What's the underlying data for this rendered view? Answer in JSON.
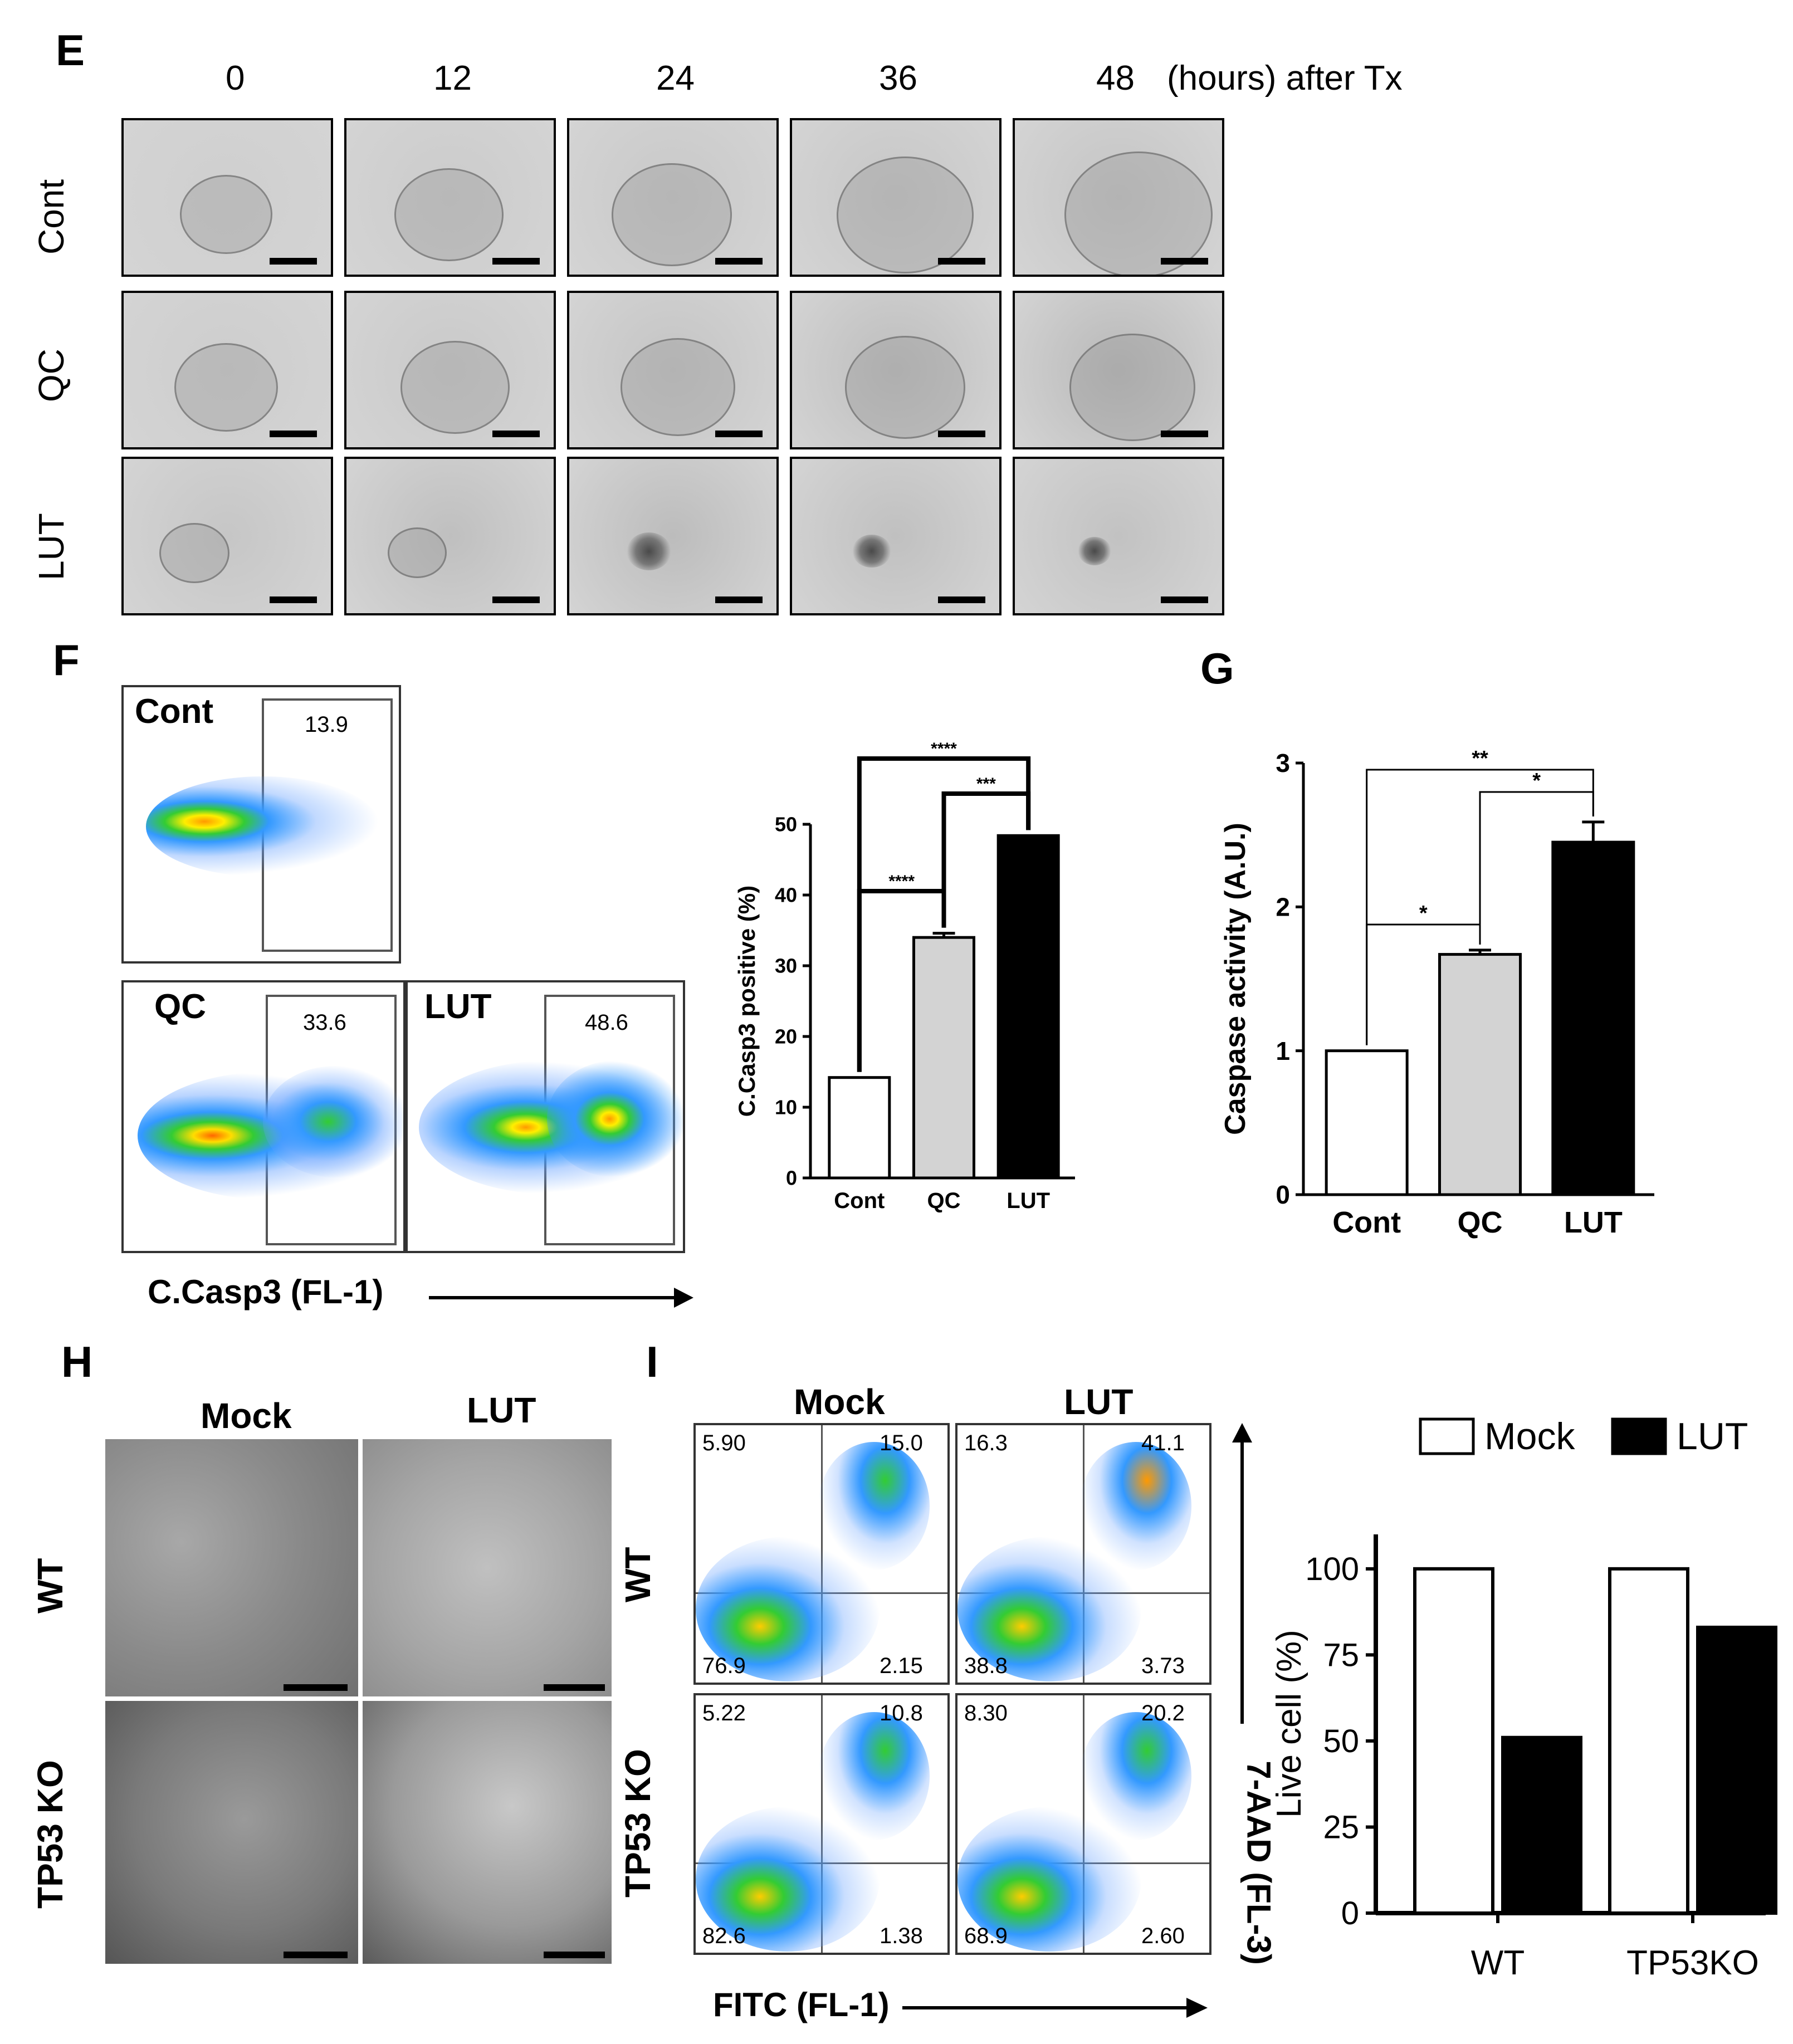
{
  "panel_e": {
    "label": "E",
    "time_points": [
      "0",
      "12",
      "24",
      "36"
    ],
    "last_time": "48",
    "time_unit": "(hours) after Tx",
    "rows": [
      "Cont",
      "QC",
      "LUT"
    ]
  },
  "panel_f": {
    "label": "F",
    "flow_plots": [
      {
        "name": "Cont",
        "value": "13.9"
      },
      {
        "name": "QC",
        "value": "33.6"
      },
      {
        "name": "LUT",
        "value": "48.6"
      }
    ],
    "x_axis": "C.Casp3 (FL-1)"
  },
  "panel_g": {
    "label": "G"
  },
  "panel_h": {
    "label": "H",
    "cols": [
      "Mock",
      "LUT"
    ],
    "rows": [
      "WT",
      "TP53 KO"
    ]
  },
  "panel_i": {
    "label": "I",
    "cols": [
      "Mock",
      "LUT"
    ],
    "rows": [
      "WT",
      "TP53 KO"
    ],
    "x_axis": "FITC (FL-1)",
    "y_axis": "7-AAD (FL-3)",
    "quadrants": [
      {
        "ul": "5.90",
        "ur": "15.0",
        "ll": "76.9",
        "lr": "2.15"
      },
      {
        "ul": "16.3",
        "ur": "41.1",
        "ll": "38.8",
        "lr": "3.73"
      },
      {
        "ul": "5.22",
        "ur": "10.8",
        "ll": "82.6",
        "lr": "1.38"
      },
      {
        "ul": "8.30",
        "ur": "20.2",
        "ll": "68.9",
        "lr": "2.60"
      }
    ]
  },
  "chart_data": [
    {
      "type": "bar",
      "categories": [
        "Cont",
        "QC",
        "LUT"
      ],
      "values": [
        14.2,
        34.0,
        48.4
      ],
      "errors": [
        0.0,
        0.6,
        0.0
      ],
      "colors": [
        "#ffffff",
        "#d3d3d3",
        "#000000"
      ],
      "ylabel": "C.Casp3 positive (%)",
      "ylim": [
        0,
        50
      ],
      "yticks": [
        0,
        10,
        20,
        30,
        40,
        50
      ],
      "significance": [
        {
          "from": 0,
          "to": 1,
          "label": "****"
        },
        {
          "from": 1,
          "to": 2,
          "label": "***"
        },
        {
          "from": 0,
          "to": 2,
          "label": "****"
        }
      ]
    },
    {
      "type": "bar",
      "categories": [
        "Cont",
        "QC",
        "LUT"
      ],
      "values": [
        1.0,
        1.67,
        2.45
      ],
      "errors": [
        0.0,
        0.03,
        0.14
      ],
      "colors": [
        "#ffffff",
        "#d3d3d3",
        "#000000"
      ],
      "ylabel": "Caspase activity (A.U.)",
      "ylim": [
        0,
        3
      ],
      "yticks": [
        0,
        1,
        2,
        3
      ],
      "significance": [
        {
          "from": 0,
          "to": 1,
          "label": "*"
        },
        {
          "from": 1,
          "to": 2,
          "label": "*"
        },
        {
          "from": 0,
          "to": 2,
          "label": "**"
        }
      ]
    },
    {
      "type": "bar",
      "categories": [
        "WT",
        "TP53KO"
      ],
      "series": [
        {
          "name": "Mock",
          "values": [
            100,
            100
          ],
          "color": "#ffffff"
        },
        {
          "name": "LUT",
          "values": [
            51,
            83
          ],
          "color": "#000000"
        }
      ],
      "ylabel": "Live cell (%)",
      "ylim": [
        0,
        110
      ],
      "yticks": [
        0,
        25,
        50,
        75,
        100
      ],
      "legend": "top"
    }
  ]
}
